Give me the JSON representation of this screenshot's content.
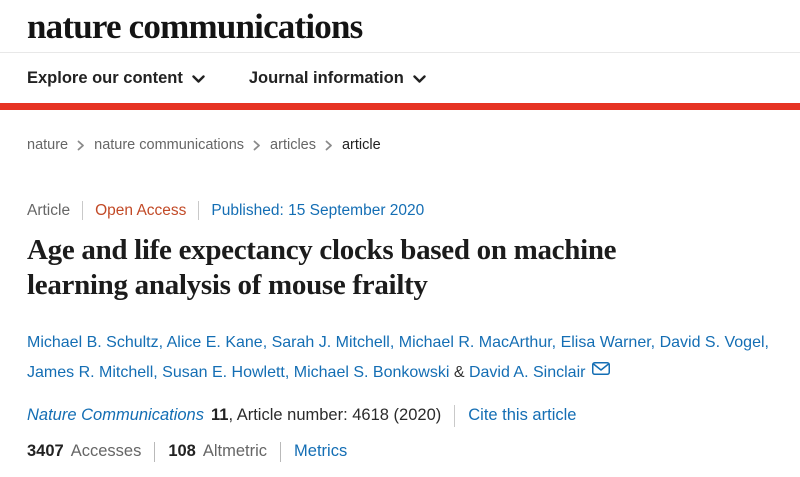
{
  "brand": {
    "logo": "nature communications"
  },
  "nav": {
    "items": [
      {
        "label": "Explore our content"
      },
      {
        "label": "Journal information"
      }
    ]
  },
  "breadcrumb": {
    "items": [
      "nature",
      "nature communications",
      "articles",
      "article"
    ]
  },
  "article": {
    "type_label": "Article",
    "access_label": "Open Access",
    "published_label": "Published:",
    "published_date": "15 September 2020",
    "title": "Age and life expectancy clocks based on machine\nlearning analysis of mouse frailty"
  },
  "authors": {
    "names": [
      "Michael B. Schultz",
      "Alice E. Kane",
      "Sarah J. Mitchell",
      "Michael R. MacArthur",
      "Elisa Warner",
      "David S. Vogel",
      "James R. Mitchell",
      "Susan E. Howlett",
      "Michael S. Bonkowski",
      "David A. Sinclair"
    ],
    "separator": ", ",
    "separator_last": " & "
  },
  "citation": {
    "journal": "Nature Communications",
    "volume": "11",
    "article_number_text": ", Article number: 4618 (2020)",
    "cite_link": "Cite this article"
  },
  "metrics": {
    "accesses_value": "3407",
    "accesses_label": "Accesses",
    "altmetric_value": "108",
    "altmetric_label": "Altmetric",
    "metrics_link": "Metrics"
  },
  "colors": {
    "link_blue": "#146eb4",
    "open_access": "#c24a27",
    "red_bar": "#e63323"
  }
}
